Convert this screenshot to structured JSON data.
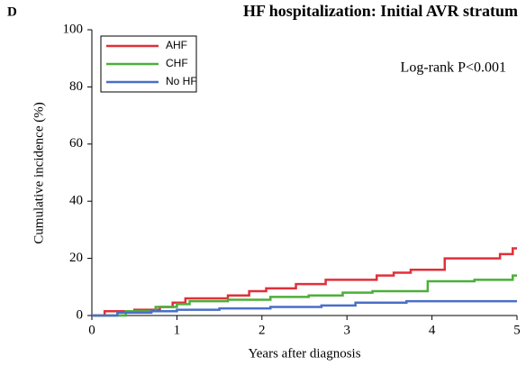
{
  "chart_data": {
    "type": "line",
    "panel_label": "D",
    "title": "HF hospitalization: Initial AVR stratum",
    "xlabel": "Years after diagnosis",
    "ylabel": "Cumulative incidence (%)",
    "annotation": "Log-rank P<0.001",
    "xlim": [
      0,
      5
    ],
    "xticks": [
      0,
      1,
      2,
      3,
      4,
      5
    ],
    "ylim": [
      0,
      100
    ],
    "yticks": [
      0,
      20,
      40,
      60,
      80,
      100
    ],
    "grid": false,
    "legend": "upper left",
    "series": [
      {
        "name": "AHF",
        "color": "#e0303a",
        "x": [
          0,
          0.15,
          0.15,
          0.5,
          0.5,
          0.8,
          0.8,
          0.95,
          0.95,
          1.1,
          1.1,
          1.6,
          1.6,
          1.85,
          1.85,
          2.05,
          2.05,
          2.4,
          2.4,
          2.75,
          2.75,
          3.35,
          3.35,
          3.55,
          3.55,
          3.75,
          3.75,
          4.15,
          4.15,
          4.8,
          4.8,
          4.95,
          4.95,
          5
        ],
        "values": [
          0,
          0,
          1.5,
          1.5,
          2,
          2,
          3,
          3,
          4.5,
          4.5,
          6,
          6,
          7,
          7,
          8.5,
          8.5,
          9.5,
          9.5,
          11,
          11,
          12.5,
          12.5,
          14,
          14,
          15,
          15,
          16,
          16,
          20,
          20,
          21.5,
          21.5,
          23.5,
          23.5
        ]
      },
      {
        "name": "CHF",
        "color": "#4caf3a",
        "x": [
          0,
          0.4,
          0.4,
          0.75,
          0.75,
          1.0,
          1.0,
          1.15,
          1.15,
          1.6,
          1.6,
          2.1,
          2.1,
          2.55,
          2.55,
          2.95,
          2.95,
          3.3,
          3.3,
          3.95,
          3.95,
          4.5,
          4.5,
          4.95,
          4.95,
          5
        ],
        "values": [
          0,
          0,
          1.5,
          1.5,
          3,
          3,
          4,
          4,
          5,
          5,
          5.5,
          5.5,
          6.5,
          6.5,
          7,
          7,
          8,
          8,
          8.5,
          8.5,
          12,
          12,
          12.5,
          12.5,
          14,
          14
        ]
      },
      {
        "name": "No HF",
        "color": "#4a6fc7",
        "x": [
          0,
          0.3,
          0.3,
          0.7,
          0.7,
          1.0,
          1.0,
          1.5,
          1.5,
          2.1,
          2.1,
          2.7,
          2.7,
          3.1,
          3.1,
          3.7,
          3.7,
          5
        ],
        "values": [
          0,
          0,
          1,
          1,
          1.5,
          1.5,
          2,
          2,
          2.5,
          2.5,
          3,
          3,
          3.5,
          3.5,
          4.5,
          4.5,
          5,
          5
        ]
      }
    ]
  }
}
